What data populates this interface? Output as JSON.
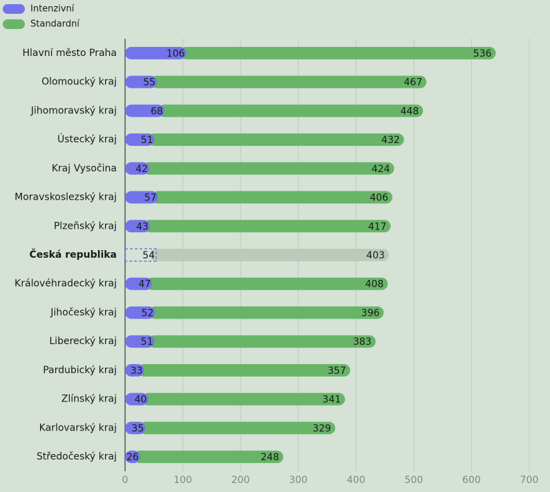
{
  "chart_data": {
    "type": "stacked-bar-horizontal",
    "categories": [
      "Hlavní město Praha",
      "Olomoucký kraj",
      "Jihomoravský kraj",
      "Ústecký kraj",
      "Kraj Vysočina",
      "Moravskoslezský kraj",
      "Plzeňský kraj",
      "Česká republika",
      "Královéhradecký kraj",
      "Jihočeský kraj",
      "Liberecký kraj",
      "Pardubický kraj",
      "Zlínský kraj",
      "Karlovarský kraj",
      "Středočeský kraj"
    ],
    "series": [
      {
        "name": "Intenzivní",
        "color": "#7474ea",
        "values": [
          106,
          55,
          68,
          51,
          42,
          57,
          43,
          54,
          47,
          52,
          51,
          33,
          40,
          35,
          26
        ]
      },
      {
        "name": "Standardní",
        "color": "#68b568",
        "values": [
          536,
          467,
          448,
          432,
          424,
          406,
          417,
          403,
          408,
          396,
          383,
          357,
          341,
          329,
          248
        ]
      }
    ],
    "xlim": [
      0,
      700
    ],
    "xticks": [
      0,
      100,
      200,
      300,
      400,
      500,
      600,
      700
    ],
    "grid": true,
    "legend": "top-left",
    "highlight": {
      "index": 7,
      "color": "#bccbb9"
    }
  }
}
